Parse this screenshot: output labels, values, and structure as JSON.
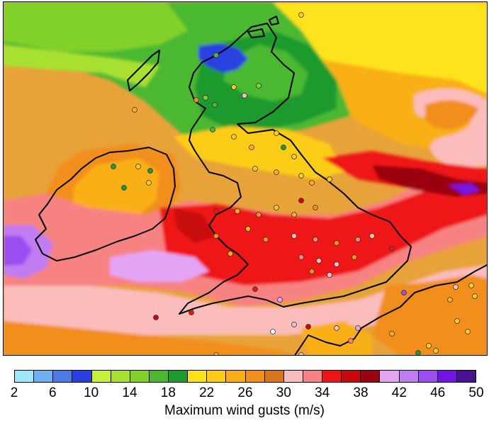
{
  "map": {
    "variable": "Maximum wind gusts",
    "units": "m/s",
    "region": "British Isles and surrounding seas"
  },
  "colorbar": {
    "title": "Maximum wind gusts (m/s)",
    "tick_labels": [
      "2",
      "6",
      "10",
      "14",
      "18",
      "22",
      "26",
      "30",
      "34",
      "38",
      "42",
      "46",
      "50"
    ],
    "bins": [
      {
        "from": 2,
        "to": 4,
        "color": "#9ee6fa"
      },
      {
        "from": 4,
        "to": 6,
        "color": "#6fb0f0"
      },
      {
        "from": 6,
        "to": 8,
        "color": "#4a7ce6"
      },
      {
        "from": 8,
        "to": 10,
        "color": "#2a3fe0"
      },
      {
        "from": 10,
        "to": 12,
        "color": "#c8f03a"
      },
      {
        "from": 12,
        "to": 14,
        "color": "#a8e030"
      },
      {
        "from": 14,
        "to": 16,
        "color": "#82d02a"
      },
      {
        "from": 16,
        "to": 18,
        "color": "#4cb832"
      },
      {
        "from": 18,
        "to": 20,
        "color": "#1e9a2e"
      },
      {
        "from": 20,
        "to": 22,
        "color": "#fde21a"
      },
      {
        "from": 22,
        "to": 24,
        "color": "#fccd14"
      },
      {
        "from": 24,
        "to": 26,
        "color": "#f9b014"
      },
      {
        "from": 26,
        "to": 28,
        "color": "#f28e1a"
      },
      {
        "from": 28,
        "to": 30,
        "color": "#d8761e"
      },
      {
        "from": 30,
        "to": 32,
        "color": "#fbbcbc"
      },
      {
        "from": 32,
        "to": 34,
        "color": "#f78282"
      },
      {
        "from": 34,
        "to": 36,
        "color": "#ee1414"
      },
      {
        "from": 36,
        "to": 38,
        "color": "#c8080e"
      },
      {
        "from": 38,
        "to": 40,
        "color": "#9a0410"
      },
      {
        "from": 40,
        "to": 42,
        "color": "#e4a4f4"
      },
      {
        "from": 42,
        "to": 44,
        "color": "#c07cf0"
      },
      {
        "from": 44,
        "to": 46,
        "color": "#9a4ef0"
      },
      {
        "from": 46,
        "to": 48,
        "color": "#7414e4"
      },
      {
        "from": 48,
        "to": 50,
        "color": "#4a1290"
      }
    ]
  },
  "colors": {
    "coastline": "#000000",
    "station_outline": "#333333"
  }
}
